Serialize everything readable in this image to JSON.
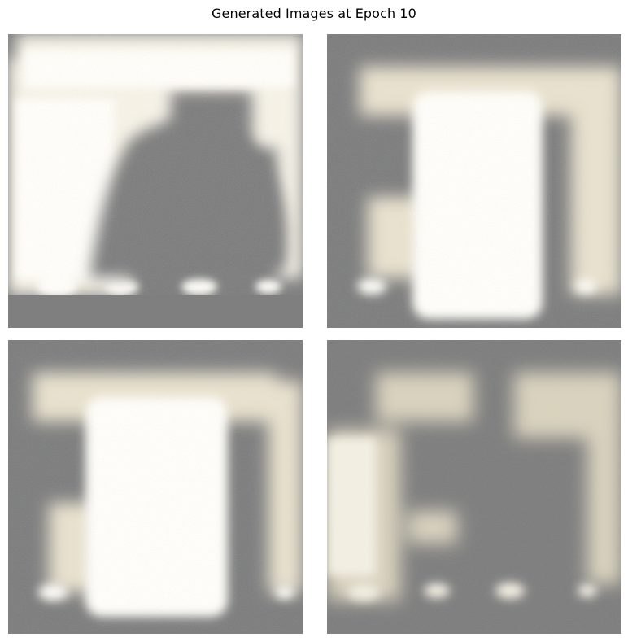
{
  "figure": {
    "title": "Generated Images at Epoch 10"
  },
  "panels": [
    {
      "id": "sample-1"
    },
    {
      "id": "sample-2"
    },
    {
      "id": "sample-3"
    },
    {
      "id": "sample-4"
    }
  ],
  "colors": {
    "background_gray": "#7f7f7f",
    "highlight_white": "#fdfcf6",
    "warm_cream": "#e9e2cf",
    "speckle_blue": "#8fa6c8",
    "speckle_pink": "#c9a3b8"
  }
}
